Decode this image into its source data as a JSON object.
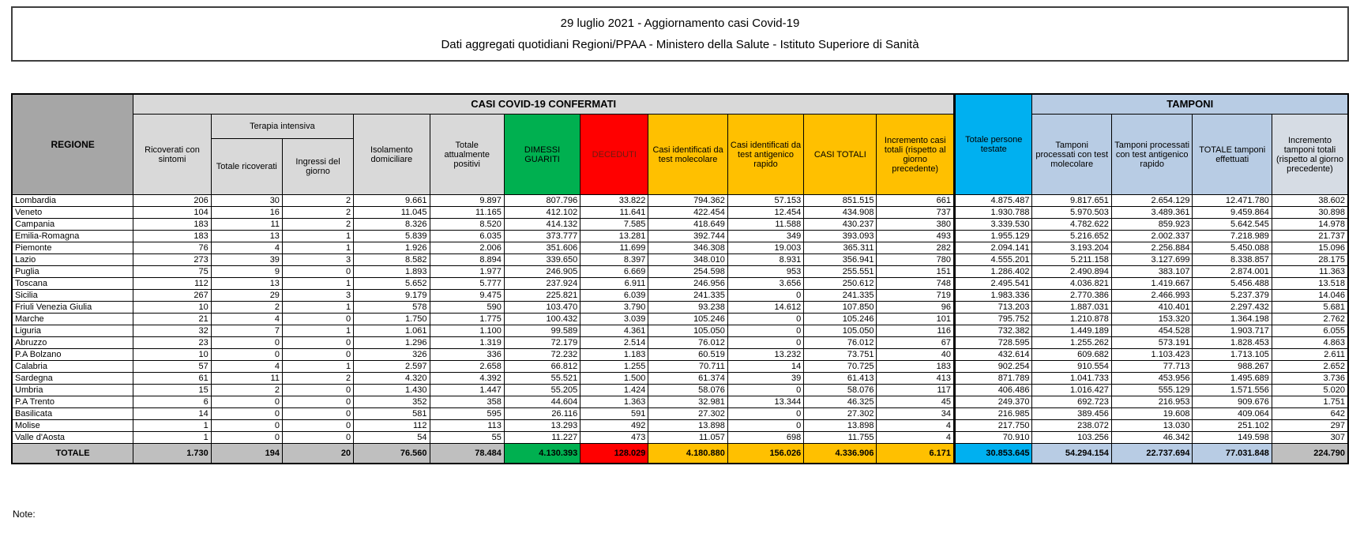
{
  "title": {
    "line1": "29 luglio 2021 - Aggiornamento casi Covid-19",
    "line2": "Dati aggregati quotidiani Regioni/PPAA - Ministero della Salute - Istituto Superiore di Sanità"
  },
  "note_label": "Note:",
  "colors": {
    "header_gray": "#d9d9d9",
    "regione_gray": "#a6a6a6",
    "green": "#00b050",
    "red": "#ff0000",
    "deceduti_text": "#6e1a10",
    "gold": "#ffc000",
    "cyan": "#00b0f0",
    "light_blue": "#b8cce4",
    "blue_gray": "#d6dce4",
    "totale_gray": "#bfbfbf"
  },
  "table": {
    "corner_header": "REGIONE",
    "groups": {
      "casi": "CASI COVID-19 CONFERMATI",
      "terapia": "Terapia intensiva",
      "tamponi": "TAMPONI"
    },
    "columns": [
      "Ricoverati con sintomi",
      "Totale ricoverati",
      "Ingressi del giorno",
      "Isolamento domiciliare",
      "Totale attualmente positivi",
      "DIMESSI GUARITI",
      "DECEDUTI",
      "Casi identificati da test molecolare",
      "Casi identificati da test antigenico rapido",
      "CASI TOTALI",
      "Incremento casi totali (rispetto al giorno precedente)",
      "Totale persone testate",
      "Tamponi processati con test molecolare",
      "Tamponi processati con test antigenico rapido",
      "TOTALE tamponi effettuati",
      "Incremento tamponi totali (rispetto al giorno precedente)"
    ],
    "rows": [
      {
        "region": "Lombardia",
        "values": [
          "206",
          "30",
          "2",
          "9.661",
          "9.897",
          "807.796",
          "33.822",
          "794.362",
          "57.153",
          "851.515",
          "661",
          "4.875.487",
          "9.817.651",
          "2.654.129",
          "12.471.780",
          "38.602"
        ]
      },
      {
        "region": "Veneto",
        "values": [
          "104",
          "16",
          "2",
          "11.045",
          "11.165",
          "412.102",
          "11.641",
          "422.454",
          "12.454",
          "434.908",
          "737",
          "1.930.788",
          "5.970.503",
          "3.489.361",
          "9.459.864",
          "30.898"
        ]
      },
      {
        "region": "Campania",
        "values": [
          "183",
          "11",
          "2",
          "8.326",
          "8.520",
          "414.132",
          "7.585",
          "418.649",
          "11.588",
          "430.237",
          "380",
          "3.339.530",
          "4.782.622",
          "859.923",
          "5.642.545",
          "14.978"
        ]
      },
      {
        "region": "Emilia-Romagna",
        "values": [
          "183",
          "13",
          "1",
          "5.839",
          "6.035",
          "373.777",
          "13.281",
          "392.744",
          "349",
          "393.093",
          "493",
          "1.955.129",
          "5.216.652",
          "2.002.337",
          "7.218.989",
          "21.737"
        ]
      },
      {
        "region": "Piemonte",
        "values": [
          "76",
          "4",
          "1",
          "1.926",
          "2.006",
          "351.606",
          "11.699",
          "346.308",
          "19.003",
          "365.311",
          "282",
          "2.094.141",
          "3.193.204",
          "2.256.884",
          "5.450.088",
          "15.096"
        ]
      },
      {
        "region": "Lazio",
        "values": [
          "273",
          "39",
          "3",
          "8.582",
          "8.894",
          "339.650",
          "8.397",
          "348.010",
          "8.931",
          "356.941",
          "780",
          "4.555.201",
          "5.211.158",
          "3.127.699",
          "8.338.857",
          "28.175"
        ]
      },
      {
        "region": "Puglia",
        "values": [
          "75",
          "9",
          "0",
          "1.893",
          "1.977",
          "246.905",
          "6.669",
          "254.598",
          "953",
          "255.551",
          "151",
          "1.286.402",
          "2.490.894",
          "383.107",
          "2.874.001",
          "11.363"
        ]
      },
      {
        "region": "Toscana",
        "values": [
          "112",
          "13",
          "1",
          "5.652",
          "5.777",
          "237.924",
          "6.911",
          "246.956",
          "3.656",
          "250.612",
          "748",
          "2.495.541",
          "4.036.821",
          "1.419.667",
          "5.456.488",
          "13.518"
        ]
      },
      {
        "region": "Sicilia",
        "values": [
          "267",
          "29",
          "3",
          "9.179",
          "9.475",
          "225.821",
          "6.039",
          "241.335",
          "0",
          "241.335",
          "719",
          "1.983.336",
          "2.770.386",
          "2.466.993",
          "5.237.379",
          "14.046"
        ]
      },
      {
        "region": "Friuli Venezia Giulia",
        "values": [
          "10",
          "2",
          "1",
          "578",
          "590",
          "103.470",
          "3.790",
          "93.238",
          "14.612",
          "107.850",
          "96",
          "713.203",
          "1.887.031",
          "410.401",
          "2.297.432",
          "5.681"
        ]
      },
      {
        "region": "Marche",
        "values": [
          "21",
          "4",
          "0",
          "1.750",
          "1.775",
          "100.432",
          "3.039",
          "105.246",
          "0",
          "105.246",
          "101",
          "795.752",
          "1.210.878",
          "153.320",
          "1.364.198",
          "2.762"
        ]
      },
      {
        "region": "Liguria",
        "values": [
          "32",
          "7",
          "1",
          "1.061",
          "1.100",
          "99.589",
          "4.361",
          "105.050",
          "0",
          "105.050",
          "116",
          "732.382",
          "1.449.189",
          "454.528",
          "1.903.717",
          "6.055"
        ]
      },
      {
        "region": "Abruzzo",
        "values": [
          "23",
          "0",
          "0",
          "1.296",
          "1.319",
          "72.179",
          "2.514",
          "76.012",
          "0",
          "76.012",
          "67",
          "728.595",
          "1.255.262",
          "573.191",
          "1.828.453",
          "4.863"
        ]
      },
      {
        "region": "P.A Bolzano",
        "values": [
          "10",
          "0",
          "0",
          "326",
          "336",
          "72.232",
          "1.183",
          "60.519",
          "13.232",
          "73.751",
          "40",
          "432.614",
          "609.682",
          "1.103.423",
          "1.713.105",
          "2.611"
        ]
      },
      {
        "region": "Calabria",
        "values": [
          "57",
          "4",
          "1",
          "2.597",
          "2.658",
          "66.812",
          "1.255",
          "70.711",
          "14",
          "70.725",
          "183",
          "902.254",
          "910.554",
          "77.713",
          "988.267",
          "2.652"
        ]
      },
      {
        "region": "Sardegna",
        "values": [
          "61",
          "11",
          "2",
          "4.320",
          "4.392",
          "55.521",
          "1.500",
          "61.374",
          "39",
          "61.413",
          "413",
          "871.789",
          "1.041.733",
          "453.956",
          "1.495.689",
          "3.736"
        ]
      },
      {
        "region": "Umbria",
        "values": [
          "15",
          "2",
          "0",
          "1.430",
          "1.447",
          "55.205",
          "1.424",
          "58.076",
          "0",
          "58.076",
          "117",
          "406.486",
          "1.016.427",
          "555.129",
          "1.571.556",
          "5.020"
        ]
      },
      {
        "region": "P.A Trento",
        "values": [
          "6",
          "0",
          "0",
          "352",
          "358",
          "44.604",
          "1.363",
          "32.981",
          "13.344",
          "46.325",
          "45",
          "249.370",
          "692.723",
          "216.953",
          "909.676",
          "1.751"
        ]
      },
      {
        "region": "Basilicata",
        "values": [
          "14",
          "0",
          "0",
          "581",
          "595",
          "26.116",
          "591",
          "27.302",
          "0",
          "27.302",
          "34",
          "216.985",
          "389.456",
          "19.608",
          "409.064",
          "642"
        ]
      },
      {
        "region": "Molise",
        "values": [
          "1",
          "0",
          "0",
          "112",
          "113",
          "13.293",
          "492",
          "13.898",
          "0",
          "13.898",
          "4",
          "217.750",
          "238.072",
          "13.030",
          "251.102",
          "297"
        ]
      },
      {
        "region": "Valle d'Aosta",
        "values": [
          "1",
          "0",
          "0",
          "54",
          "55",
          "11.227",
          "473",
          "11.057",
          "698",
          "11.755",
          "4",
          "70.910",
          "103.256",
          "46.342",
          "149.598",
          "307"
        ]
      }
    ],
    "total_row": {
      "region": "TOTALE",
      "values": [
        "1.730",
        "194",
        "20",
        "76.560",
        "78.484",
        "4.130.393",
        "128.029",
        "4.180.880",
        "156.026",
        "4.336.906",
        "6.171",
        "30.853.645",
        "54.294.154",
        "22.737.694",
        "77.031.848",
        "224.790"
      ]
    }
  }
}
